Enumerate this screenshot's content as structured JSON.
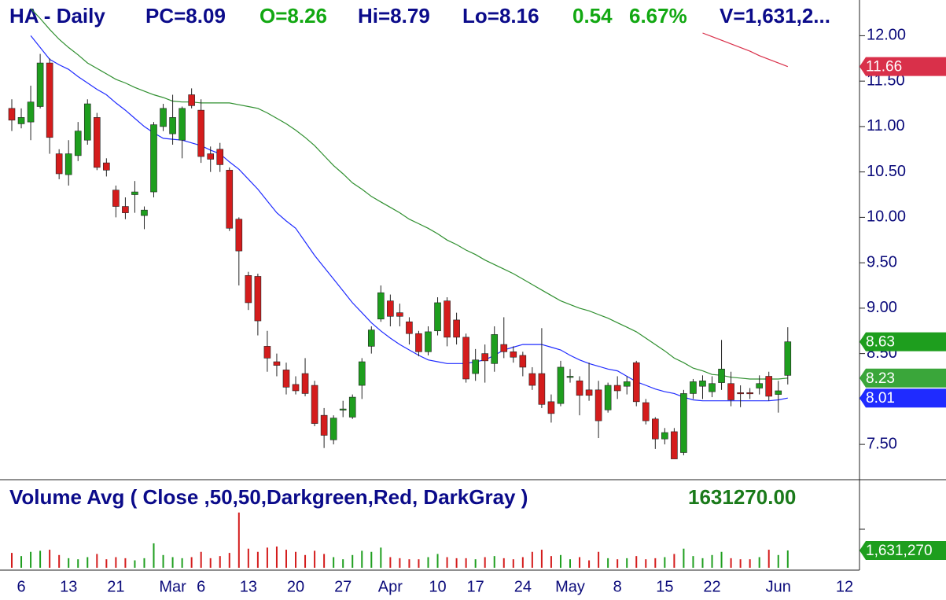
{
  "chart_data": {
    "type": "candlestick",
    "header": [
      {
        "text": "HA - Daily",
        "color": "#0b0b8a"
      },
      {
        "text": "PC=8.09",
        "color": "#0b0b8a"
      },
      {
        "text": "O=8.26",
        "color": "#12a812"
      },
      {
        "text": "Hi=8.79",
        "color": "#0b0b8a"
      },
      {
        "text": "Lo=8.16",
        "color": "#0b0b8a"
      },
      {
        "text": "0.54",
        "color": "#12a812"
      },
      {
        "text": "6.67%",
        "color": "#12a812"
      },
      {
        "text": "V=1,631,2...",
        "color": "#0b0b8a"
      }
    ],
    "categories": [
      null,
      "6",
      null,
      null,
      null,
      null,
      "13",
      null,
      null,
      null,
      null,
      "21",
      null,
      null,
      null,
      null,
      null,
      "Mar",
      null,
      null,
      "6",
      null,
      null,
      null,
      null,
      "13",
      null,
      null,
      null,
      null,
      "20",
      null,
      null,
      null,
      null,
      "27",
      null,
      null,
      null,
      null,
      "Apr",
      null,
      null,
      null,
      null,
      "10",
      null,
      null,
      null,
      "17",
      null,
      null,
      null,
      null,
      "24",
      null,
      null,
      null,
      null,
      "May",
      null,
      null,
      null,
      null,
      "8",
      null,
      null,
      null,
      null,
      "15",
      null,
      null,
      null,
      null,
      "22",
      null,
      null,
      null,
      null,
      null,
      null,
      "Jun",
      null,
      null,
      null,
      null,
      null,
      null,
      "12"
    ],
    "open": [
      11.2,
      11.03,
      11.05,
      11.22,
      11.7,
      10.7,
      10.47,
      10.68,
      10.85,
      11.1,
      10.6,
      10.3,
      10.12,
      10.25,
      10.02,
      10.28,
      11.0,
      10.92,
      10.85,
      11.35,
      11.18,
      10.7,
      10.75,
      10.52,
      9.98,
      9.36,
      9.35,
      8.58,
      8.41,
      8.32,
      8.16,
      8.28,
      8.15,
      7.82,
      7.55,
      7.88,
      7.8,
      8.15,
      8.58,
      8.88,
      9.08,
      8.95,
      8.85,
      8.72,
      8.52,
      8.75,
      9.08,
      8.87,
      8.68,
      8.28,
      8.5,
      8.39,
      8.6,
      8.52,
      8.48,
      8.28,
      8.28,
      7.97,
      7.95,
      8.24,
      8.2,
      8.1,
      8.1,
      7.88,
      8.15,
      8.14,
      8.4,
      7.96,
      7.78,
      7.56,
      7.64,
      7.41,
      8.06,
      8.14,
      8.08,
      8.18,
      8.17,
      8.07,
      8.07,
      8.12,
      8.25,
      8.05,
      8.26,
      null,
      null,
      null,
      null,
      null,
      null
    ],
    "high": [
      11.3,
      11.2,
      11.45,
      11.8,
      11.75,
      10.75,
      10.85,
      11.05,
      11.3,
      11.15,
      10.65,
      10.35,
      10.22,
      10.4,
      10.12,
      11.05,
      11.25,
      11.35,
      11.22,
      11.42,
      11.3,
      10.78,
      10.82,
      10.55,
      10.0,
      9.4,
      9.38,
      8.75,
      8.5,
      8.4,
      8.25,
      8.45,
      8.2,
      7.9,
      7.82,
      7.98,
      8.05,
      8.45,
      8.8,
      9.25,
      9.15,
      9.05,
      8.9,
      8.75,
      8.8,
      9.12,
      9.12,
      8.95,
      8.72,
      8.55,
      8.6,
      8.8,
      8.9,
      8.58,
      8.52,
      8.35,
      8.78,
      8.05,
      8.42,
      8.33,
      8.25,
      8.4,
      8.2,
      8.18,
      8.25,
      8.25,
      8.42,
      8.0,
      7.8,
      7.68,
      7.68,
      8.1,
      8.22,
      8.26,
      8.25,
      8.65,
      8.3,
      8.15,
      8.12,
      8.26,
      8.3,
      8.2,
      8.79,
      null,
      null,
      null,
      null,
      null,
      null
    ],
    "low": [
      10.95,
      10.98,
      10.85,
      11.2,
      10.7,
      10.42,
      10.35,
      10.62,
      10.8,
      10.52,
      10.45,
      10.0,
      9.98,
      10.05,
      9.87,
      10.22,
      10.95,
      10.8,
      10.65,
      11.2,
      10.6,
      10.5,
      10.5,
      9.85,
      9.25,
      8.98,
      8.7,
      8.3,
      8.25,
      8.05,
      8.05,
      8.03,
      7.7,
      7.46,
      7.5,
      7.8,
      7.78,
      8.0,
      8.5,
      8.85,
      8.8,
      8.8,
      8.6,
      8.47,
      8.48,
      8.7,
      8.58,
      8.6,
      8.18,
      8.2,
      8.18,
      8.3,
      8.45,
      8.4,
      8.25,
      8.1,
      7.9,
      7.74,
      7.92,
      8.18,
      7.82,
      7.98,
      7.57,
      7.85,
      8.0,
      8.05,
      7.92,
      7.72,
      7.45,
      7.5,
      7.34,
      7.38,
      8.0,
      8.0,
      8.02,
      8.1,
      7.92,
      7.91,
      8.0,
      8.05,
      7.98,
      7.85,
      8.16,
      null,
      null,
      null,
      null,
      null,
      null
    ],
    "close": [
      11.07,
      11.1,
      11.27,
      11.7,
      10.88,
      10.48,
      10.7,
      10.95,
      11.25,
      10.55,
      10.52,
      10.12,
      10.05,
      10.28,
      10.08,
      11.02,
      11.2,
      11.1,
      11.2,
      11.23,
      10.67,
      10.64,
      10.58,
      9.88,
      9.63,
      9.06,
      8.86,
      8.45,
      8.37,
      8.13,
      8.09,
      8.06,
      7.73,
      7.6,
      7.79,
      7.89,
      8.02,
      8.41,
      8.76,
      9.17,
      8.91,
      8.91,
      8.72,
      8.52,
      8.74,
      9.06,
      8.68,
      8.68,
      8.22,
      8.43,
      8.42,
      8.71,
      8.52,
      8.46,
      8.35,
      8.15,
      7.94,
      7.84,
      8.35,
      8.25,
      8.04,
      8.04,
      7.76,
      8.15,
      8.09,
      8.19,
      7.97,
      7.76,
      7.56,
      7.63,
      7.34,
      8.06,
      8.19,
      8.2,
      8.17,
      8.33,
      7.99,
      8.06,
      8.06,
      8.17,
      8.03,
      8.09,
      8.63,
      null,
      null,
      null,
      null,
      null,
      null
    ],
    "up_color": "#1e9e1e",
    "down_color": "#d41c1c",
    "close_tag_color": "#1e9e1e",
    "overlays": [
      {
        "color": "#1f2bff",
        "values": [
          null,
          null,
          12.0,
          11.87,
          11.74,
          11.68,
          11.63,
          11.55,
          11.48,
          11.41,
          11.35,
          11.26,
          11.18,
          11.09,
          11.0,
          10.93,
          10.87,
          10.86,
          10.85,
          10.82,
          10.79,
          10.74,
          10.7,
          10.61,
          10.53,
          10.42,
          10.31,
          10.18,
          10.05,
          9.96,
          9.88,
          9.73,
          9.58,
          9.45,
          9.32,
          9.19,
          9.06,
          8.95,
          8.84,
          8.75,
          8.67,
          8.6,
          8.54,
          8.48,
          8.43,
          8.41,
          8.39,
          8.39,
          8.39,
          8.41,
          8.43,
          8.48,
          8.54,
          8.57,
          8.6,
          8.6,
          8.6,
          8.57,
          8.54,
          8.48,
          8.43,
          8.39,
          8.36,
          8.33,
          8.31,
          8.25,
          8.19,
          8.15,
          8.11,
          8.08,
          8.06,
          8.02,
          7.99,
          7.98,
          7.98,
          7.98,
          7.98,
          7.98,
          7.98,
          7.98,
          7.98,
          7.99,
          8.01,
          null,
          null,
          null,
          null,
          null,
          null
        ]
      },
      {
        "color": "#2f8f2f",
        "tag_color": "#3aa63a",
        "values": [
          null,
          null,
          12.3,
          12.19,
          12.07,
          11.96,
          11.87,
          11.79,
          11.7,
          11.64,
          11.58,
          11.52,
          11.48,
          11.43,
          11.39,
          11.35,
          11.32,
          11.28,
          11.27,
          11.27,
          11.26,
          11.26,
          11.26,
          11.26,
          11.24,
          11.22,
          11.2,
          11.15,
          11.09,
          11.03,
          10.96,
          10.88,
          10.79,
          10.68,
          10.57,
          10.48,
          10.38,
          10.31,
          10.23,
          10.17,
          10.11,
          10.05,
          9.98,
          9.93,
          9.88,
          9.82,
          9.75,
          9.7,
          9.64,
          9.59,
          9.53,
          9.48,
          9.43,
          9.38,
          9.32,
          9.26,
          9.2,
          9.14,
          9.08,
          9.04,
          9.0,
          8.97,
          8.93,
          8.89,
          8.84,
          8.79,
          8.74,
          8.67,
          8.6,
          8.53,
          8.45,
          8.4,
          8.34,
          8.31,
          8.27,
          8.26,
          8.24,
          8.23,
          8.22,
          8.22,
          8.22,
          8.22,
          8.23,
          null,
          null,
          null,
          null,
          null,
          null
        ]
      },
      {
        "color": "#d9304a",
        "values": [
          null,
          null,
          null,
          null,
          null,
          null,
          null,
          null,
          null,
          null,
          null,
          null,
          null,
          null,
          null,
          null,
          null,
          null,
          null,
          null,
          null,
          null,
          null,
          null,
          null,
          null,
          null,
          null,
          null,
          null,
          null,
          null,
          null,
          null,
          null,
          null,
          null,
          null,
          null,
          null,
          null,
          null,
          null,
          null,
          null,
          null,
          null,
          null,
          null,
          null,
          null,
          null,
          null,
          null,
          null,
          null,
          null,
          null,
          null,
          null,
          null,
          null,
          null,
          null,
          null,
          null,
          null,
          null,
          null,
          null,
          null,
          null,
          null,
          12.03,
          11.99,
          11.95,
          11.91,
          11.87,
          11.83,
          11.78,
          11.74,
          11.7,
          11.66,
          null,
          null,
          null,
          null,
          null,
          null
        ]
      }
    ],
    "ylim": [
      7.12,
      12.35
    ],
    "yticks": [
      {
        "value": 12,
        "label": "12.00"
      },
      {
        "value": 11.5,
        "label": "11.50"
      },
      {
        "value": 11,
        "label": "11.00"
      },
      {
        "value": 10.5,
        "label": "10.50"
      },
      {
        "value": 10,
        "label": "10.00"
      },
      {
        "value": 9.5,
        "label": "9.50"
      },
      {
        "value": 9,
        "label": "9.00"
      },
      {
        "value": 8.5,
        "label": "8.50"
      },
      {
        "value": 8,
        "label": "8.00"
      },
      {
        "value": 7.5,
        "label": "7.50"
      }
    ],
    "volume": {
      "title": "Volume Avg ( Close ,50,50,Darkgreen,Red, DarkGray )",
      "title_color": "#0b0b8a",
      "value_text": "1631270.00",
      "value_text_color": "#1a7a1a",
      "ylim": [
        0,
        8000000
      ],
      "tag_color": "#1e9e1e",
      "values": [
        1400000,
        1100000,
        1500000,
        1600000,
        1700000,
        1200000,
        900000,
        800000,
        1000000,
        1300000,
        800000,
        1000000,
        900000,
        700000,
        900000,
        2300000,
        1200000,
        1000000,
        900000,
        1000000,
        1500000,
        900000,
        1100000,
        1400000,
        5200000,
        1800000,
        1500000,
        1900000,
        2000000,
        1700000,
        1500000,
        1200000,
        1600000,
        1300000,
        1000000,
        800000,
        1200000,
        1600000,
        1500000,
        1900000,
        1000000,
        900000,
        800000,
        800000,
        1000000,
        1300000,
        1000000,
        900000,
        900000,
        800000,
        1000000,
        1100000,
        900000,
        800000,
        1000000,
        1500000,
        1700000,
        1100000,
        1200000,
        800000,
        1000000,
        700000,
        1500000,
        900000,
        800000,
        900000,
        1100000,
        800000,
        900000,
        1000000,
        1300000,
        1800000,
        1100000,
        900000,
        1200000,
        1500000,
        900000,
        800000,
        800000,
        1000000,
        1700000,
        1200000,
        1631270,
        null,
        null,
        null,
        null,
        null,
        null
      ],
      "value_labels": [
        null,
        null,
        null,
        null,
        null,
        null,
        null,
        null,
        null,
        null,
        null,
        null,
        null,
        null,
        null,
        null,
        null,
        null,
        null,
        null,
        null,
        null,
        null,
        null,
        null,
        null,
        null,
        null,
        null,
        null,
        null,
        null,
        null,
        null,
        null,
        null,
        null,
        null,
        null,
        null,
        null,
        null,
        null,
        null,
        null,
        null,
        null,
        null,
        null,
        null,
        null,
        null,
        null,
        null,
        null,
        null,
        null,
        null,
        null,
        null,
        null,
        null,
        null,
        null,
        null,
        null,
        null,
        null,
        null,
        null,
        null,
        null,
        null,
        null,
        null,
        null,
        null,
        null,
        null,
        null,
        null,
        null,
        "1,631,270",
        null,
        null,
        null,
        null,
        null,
        null
      ]
    }
  }
}
